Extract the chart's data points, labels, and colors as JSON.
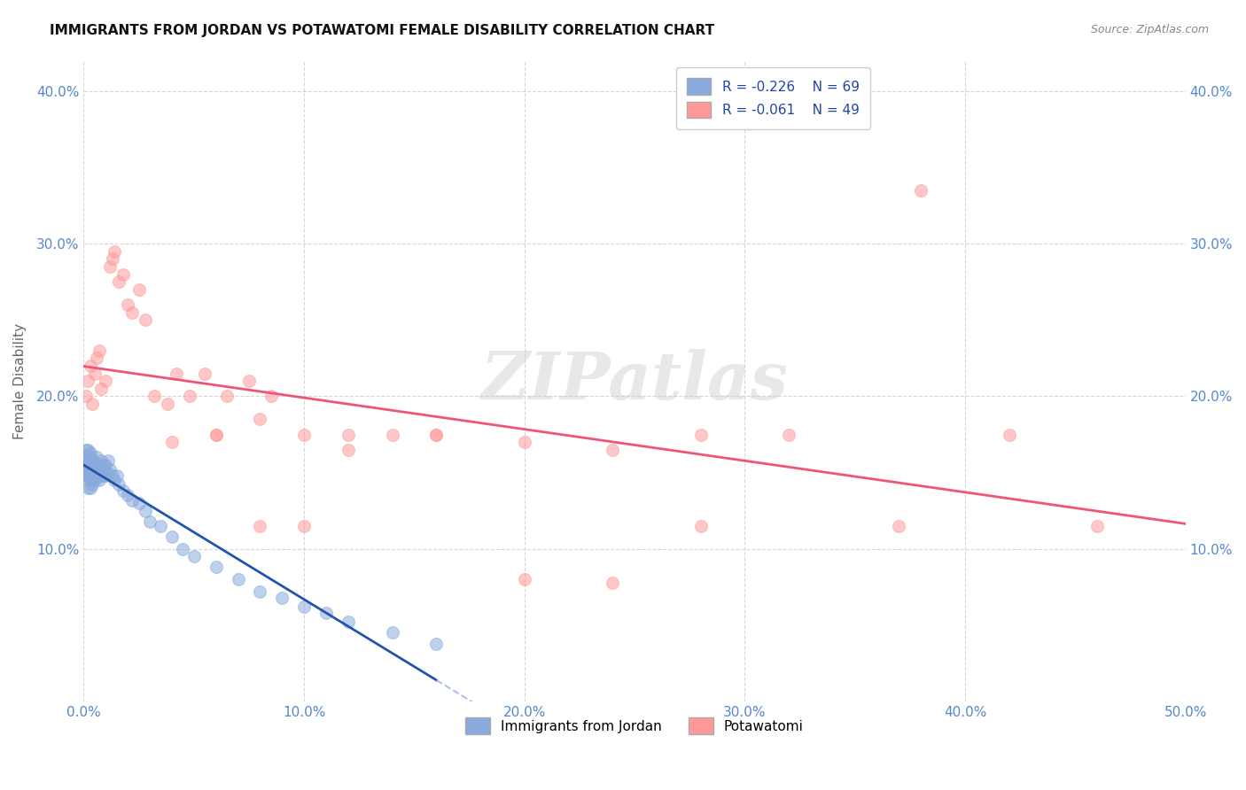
{
  "title": "IMMIGRANTS FROM JORDAN VS POTAWATOMI FEMALE DISABILITY CORRELATION CHART",
  "source": "Source: ZipAtlas.com",
  "ylabel": "Female Disability",
  "xlim": [
    0.0,
    0.5
  ],
  "ylim": [
    0.0,
    0.42
  ],
  "xticks": [
    0.0,
    0.1,
    0.2,
    0.3,
    0.4,
    0.5
  ],
  "xtick_labels": [
    "0.0%",
    "10.0%",
    "20.0%",
    "30.0%",
    "40.0%",
    "50.0%"
  ],
  "yticks": [
    0.1,
    0.2,
    0.3,
    0.4
  ],
  "ytick_labels": [
    "10.0%",
    "20.0%",
    "30.0%",
    "40.0%"
  ],
  "legend_r1": "R = -0.226",
  "legend_n1": "N = 69",
  "legend_r2": "R = -0.061",
  "legend_n2": "N = 49",
  "blue_color": "#88AADD",
  "pink_color": "#FF9999",
  "blue_line_color": "#2255AA",
  "pink_line_color": "#EE5577",
  "blue_dash_color": "#88AADD",
  "grid_color": "#CCCCCC",
  "background_color": "#FFFFFF",
  "jordan_x": [
    0.001,
    0.001,
    0.001,
    0.001,
    0.001,
    0.002,
    0.002,
    0.002,
    0.002,
    0.002,
    0.002,
    0.002,
    0.002,
    0.003,
    0.003,
    0.003,
    0.003,
    0.003,
    0.003,
    0.003,
    0.004,
    0.004,
    0.004,
    0.004,
    0.004,
    0.005,
    0.005,
    0.005,
    0.005,
    0.006,
    0.006,
    0.006,
    0.006,
    0.007,
    0.007,
    0.007,
    0.008,
    0.008,
    0.008,
    0.009,
    0.009,
    0.01,
    0.01,
    0.011,
    0.011,
    0.012,
    0.013,
    0.014,
    0.015,
    0.016,
    0.018,
    0.02,
    0.022,
    0.025,
    0.028,
    0.03,
    0.035,
    0.04,
    0.045,
    0.05,
    0.06,
    0.07,
    0.08,
    0.09,
    0.1,
    0.11,
    0.12,
    0.14,
    0.16
  ],
  "jordan_y": [
    0.148,
    0.152,
    0.155,
    0.16,
    0.165,
    0.14,
    0.145,
    0.148,
    0.152,
    0.155,
    0.158,
    0.162,
    0.165,
    0.14,
    0.145,
    0.148,
    0.152,
    0.155,
    0.16,
    0.163,
    0.142,
    0.145,
    0.15,
    0.155,
    0.158,
    0.145,
    0.148,
    0.152,
    0.157,
    0.148,
    0.15,
    0.155,
    0.16,
    0.145,
    0.15,
    0.155,
    0.148,
    0.152,
    0.158,
    0.148,
    0.155,
    0.148,
    0.155,
    0.15,
    0.158,
    0.152,
    0.148,
    0.145,
    0.148,
    0.142,
    0.138,
    0.135,
    0.132,
    0.13,
    0.125,
    0.118,
    0.115,
    0.108,
    0.1,
    0.095,
    0.088,
    0.08,
    0.072,
    0.068,
    0.062,
    0.058,
    0.052,
    0.045,
    0.038
  ],
  "potawatomi_x": [
    0.001,
    0.002,
    0.003,
    0.004,
    0.005,
    0.006,
    0.007,
    0.008,
    0.01,
    0.012,
    0.013,
    0.014,
    0.016,
    0.018,
    0.02,
    0.022,
    0.025,
    0.028,
    0.032,
    0.038,
    0.042,
    0.048,
    0.055,
    0.065,
    0.075,
    0.085,
    0.04,
    0.06,
    0.08,
    0.1,
    0.12,
    0.14,
    0.16,
    0.2,
    0.24,
    0.28,
    0.32,
    0.37,
    0.42,
    0.46,
    0.2,
    0.24,
    0.28,
    0.16,
    0.12,
    0.1,
    0.08,
    0.06,
    0.38
  ],
  "potawatomi_y": [
    0.2,
    0.21,
    0.22,
    0.195,
    0.215,
    0.225,
    0.23,
    0.205,
    0.21,
    0.285,
    0.29,
    0.295,
    0.275,
    0.28,
    0.26,
    0.255,
    0.27,
    0.25,
    0.2,
    0.195,
    0.215,
    0.2,
    0.215,
    0.2,
    0.21,
    0.2,
    0.17,
    0.175,
    0.185,
    0.175,
    0.165,
    0.175,
    0.175,
    0.17,
    0.165,
    0.175,
    0.175,
    0.115,
    0.175,
    0.115,
    0.08,
    0.078,
    0.115,
    0.175,
    0.175,
    0.115,
    0.115,
    0.175,
    0.335
  ]
}
